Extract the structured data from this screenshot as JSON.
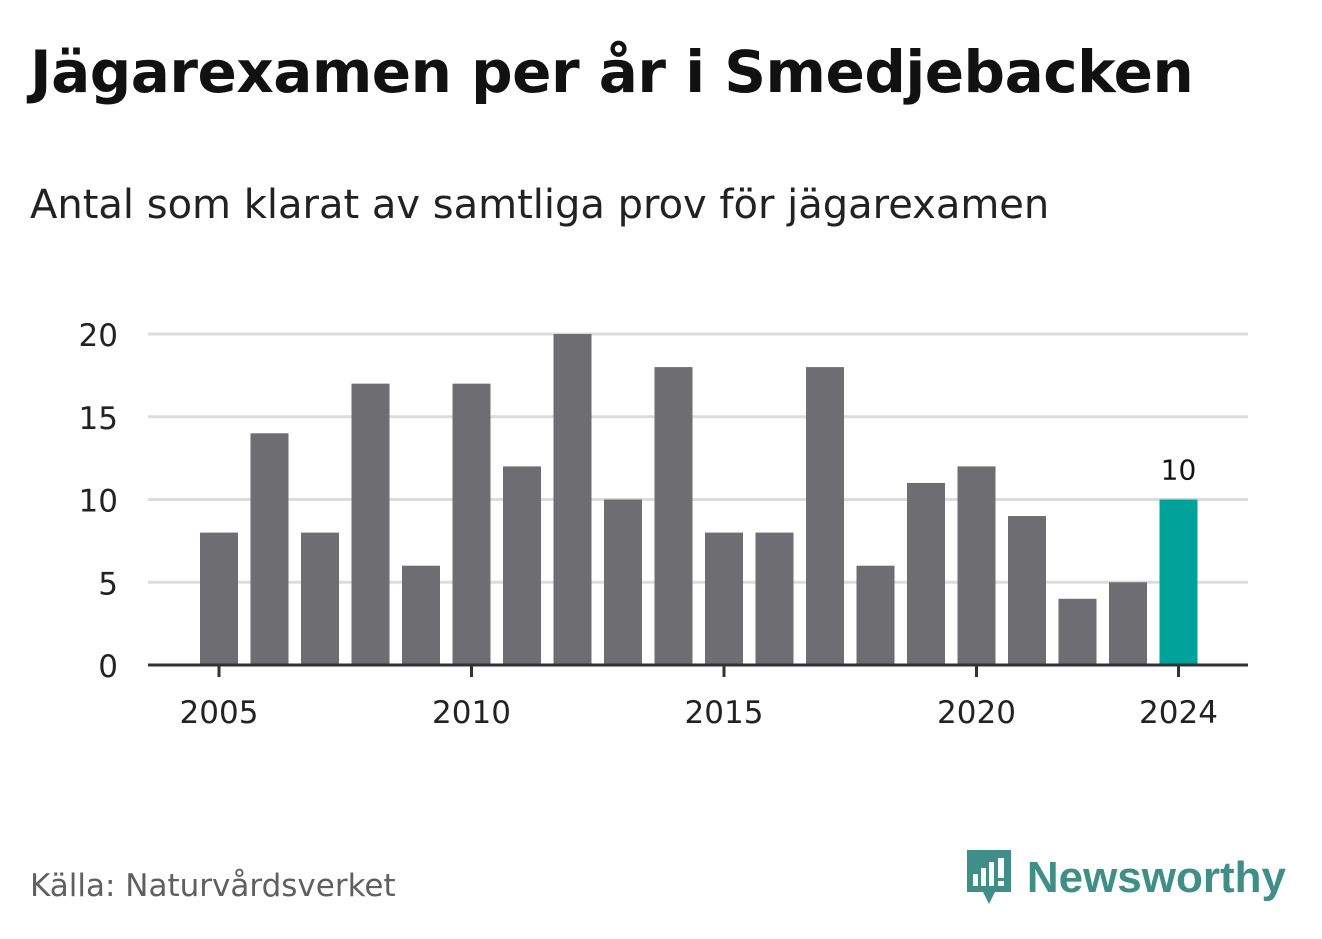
{
  "title": "Jägarexamen per år i Smedjebacken",
  "subtitle": "Antal som klarat av samtliga prov för jägarexamen",
  "source": "Källa: Naturvårdsverket",
  "brand": {
    "name": "Newsworthy",
    "icon": "newsworthy-logo-icon",
    "color": "#3f8e88"
  },
  "colors": {
    "bar": "#6e6d72",
    "highlight": "#00a29a",
    "grid": "#dcdcdc",
    "axis": "#333333"
  },
  "chart_data": {
    "type": "bar",
    "categories": [
      "2005",
      "2006",
      "2007",
      "2008",
      "2009",
      "2010",
      "2011",
      "2012",
      "2013",
      "2014",
      "2015",
      "2016",
      "2017",
      "2018",
      "2019",
      "2020",
      "2021",
      "2022",
      "2023",
      "2024"
    ],
    "values": [
      8,
      14,
      8,
      17,
      6,
      17,
      12,
      20,
      10,
      18,
      8,
      8,
      18,
      6,
      11,
      12,
      9,
      4,
      5,
      10
    ],
    "highlight": {
      "category": "2024",
      "label": "10"
    },
    "ylim": [
      0,
      20
    ],
    "yticks": [
      0,
      5,
      10,
      15,
      20
    ],
    "xticks": [
      "2005",
      "2010",
      "2015",
      "2020",
      "2024"
    ],
    "grid": true
  }
}
